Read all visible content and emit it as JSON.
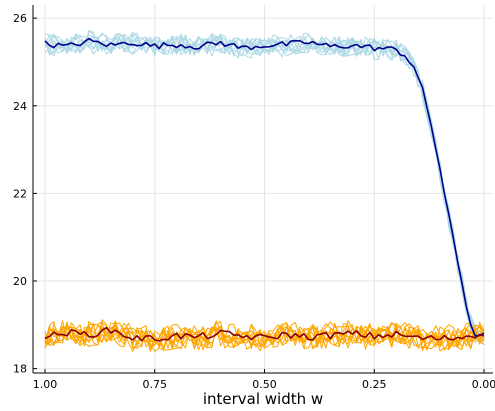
{
  "chart_data": {
    "type": "line",
    "title": "",
    "xlabel": "interval width w",
    "ylabel": "",
    "xlim": [
      1.0,
      0.0
    ],
    "x_reversed": true,
    "ylim": [
      17.9,
      26.3
    ],
    "grid": true,
    "legend": "none",
    "x_ticks": [
      1.0,
      0.75,
      0.5,
      0.25,
      0.0
    ],
    "x_tick_labels": [
      "1.00",
      "0.75",
      "0.50",
      "0.25",
      "0.00"
    ],
    "y_ticks": [
      18,
      20,
      22,
      24,
      26
    ],
    "y_tick_labels": [
      "18",
      "20",
      "22",
      "24",
      "26"
    ],
    "colors": {
      "upper_runs": "#add8e6",
      "upper_mean": "#00008b",
      "lower_runs": "#ffa500",
      "lower_mean": "#8b0000",
      "grid": "#e6e6e6",
      "axis": "#000000"
    },
    "groups": [
      {
        "role": "upper",
        "runs_count": 10,
        "noise_amplitude": 0.28,
        "mean_curve": {
          "x": [
            1.0,
            0.95,
            0.9,
            0.85,
            0.8,
            0.75,
            0.7,
            0.65,
            0.6,
            0.55,
            0.5,
            0.45,
            0.4,
            0.35,
            0.3,
            0.25,
            0.2,
            0.18,
            0.16,
            0.14,
            0.12,
            0.1,
            0.08,
            0.06,
            0.04,
            0.03,
            0.02,
            0.01,
            0.0
          ],
          "y": [
            25.42,
            25.35,
            25.48,
            25.38,
            25.45,
            25.36,
            25.4,
            25.35,
            25.44,
            25.32,
            25.38,
            25.4,
            25.45,
            25.35,
            25.38,
            25.32,
            25.28,
            25.15,
            24.9,
            24.35,
            23.55,
            22.55,
            21.45,
            20.45,
            19.45,
            19.0,
            18.8,
            18.7,
            18.75
          ]
        }
      },
      {
        "role": "lower",
        "runs_count": 10,
        "noise_amplitude": 0.32,
        "mean_curve": {
          "x": [
            1.0,
            0.95,
            0.9,
            0.85,
            0.8,
            0.75,
            0.7,
            0.65,
            0.6,
            0.55,
            0.5,
            0.45,
            0.4,
            0.35,
            0.3,
            0.25,
            0.2,
            0.15,
            0.1,
            0.05,
            0.0
          ],
          "y": [
            18.72,
            18.82,
            18.78,
            18.88,
            18.7,
            18.68,
            18.75,
            18.72,
            18.8,
            18.74,
            18.7,
            18.78,
            18.72,
            18.76,
            18.8,
            18.74,
            18.78,
            18.7,
            18.68,
            18.72,
            18.82
          ]
        }
      }
    ]
  }
}
